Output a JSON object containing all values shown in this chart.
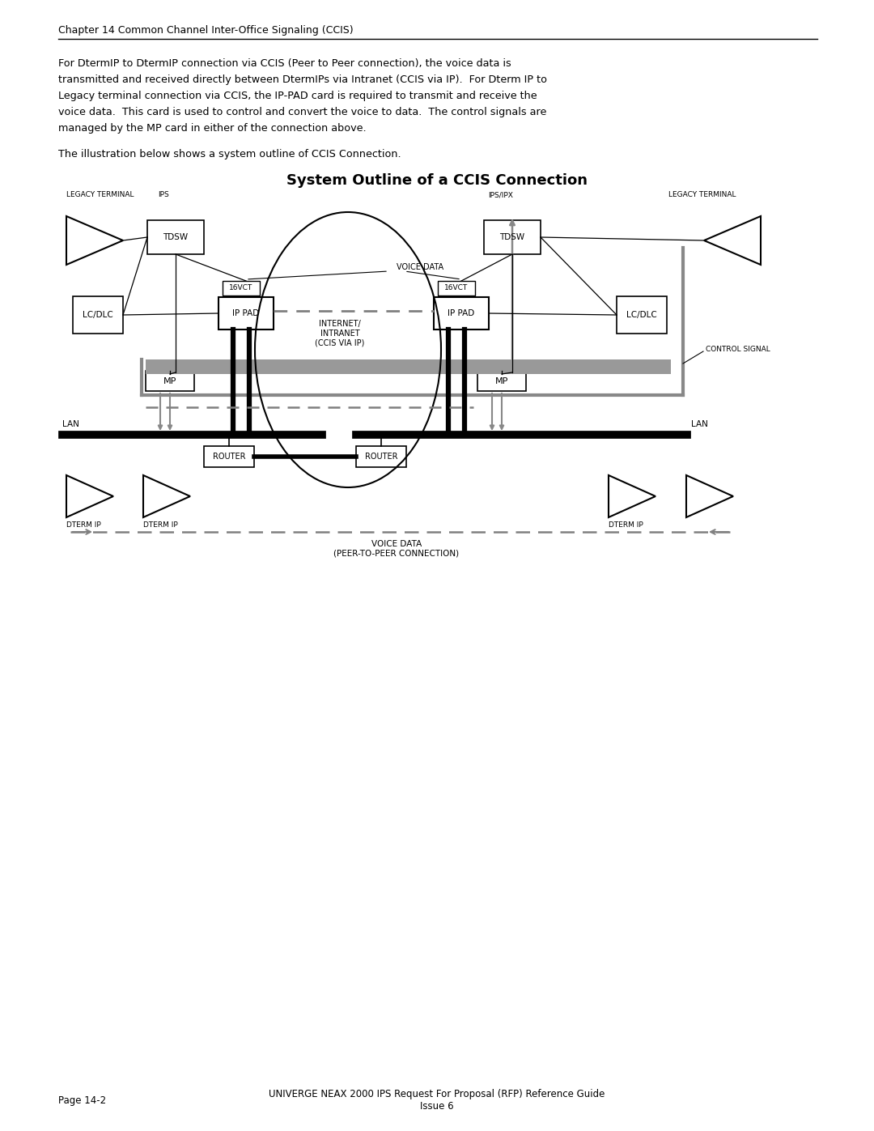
{
  "page_title": "Chapter 14 Common Channel Inter-Office Signaling (CCIS)",
  "body_text_lines": [
    "For DtermIP to DtermIP connection via CCIS (Peer to Peer connection), the voice data is",
    "transmitted and received directly between DtermIPs via Intranet (CCIS via IP).  For Dterm IP to",
    "Legacy terminal connection via CCIS, the IP-PAD card is required to transmit and receive the",
    "voice data.  This card is used to control and convert the voice to data.  The control signals are",
    "managed by the MP card in either of the connection above."
  ],
  "intro_text": "The illustration below shows a system outline of CCIS Connection.",
  "diagram_title": "System Outline of a CCIS Connection",
  "footer_left": "Page 14-2",
  "footer_right": "UNIVERGE NEAX 2000 IPS Request For Proposal (RFP) Reference Guide\nIssue 6",
  "bg_color": "#ffffff"
}
